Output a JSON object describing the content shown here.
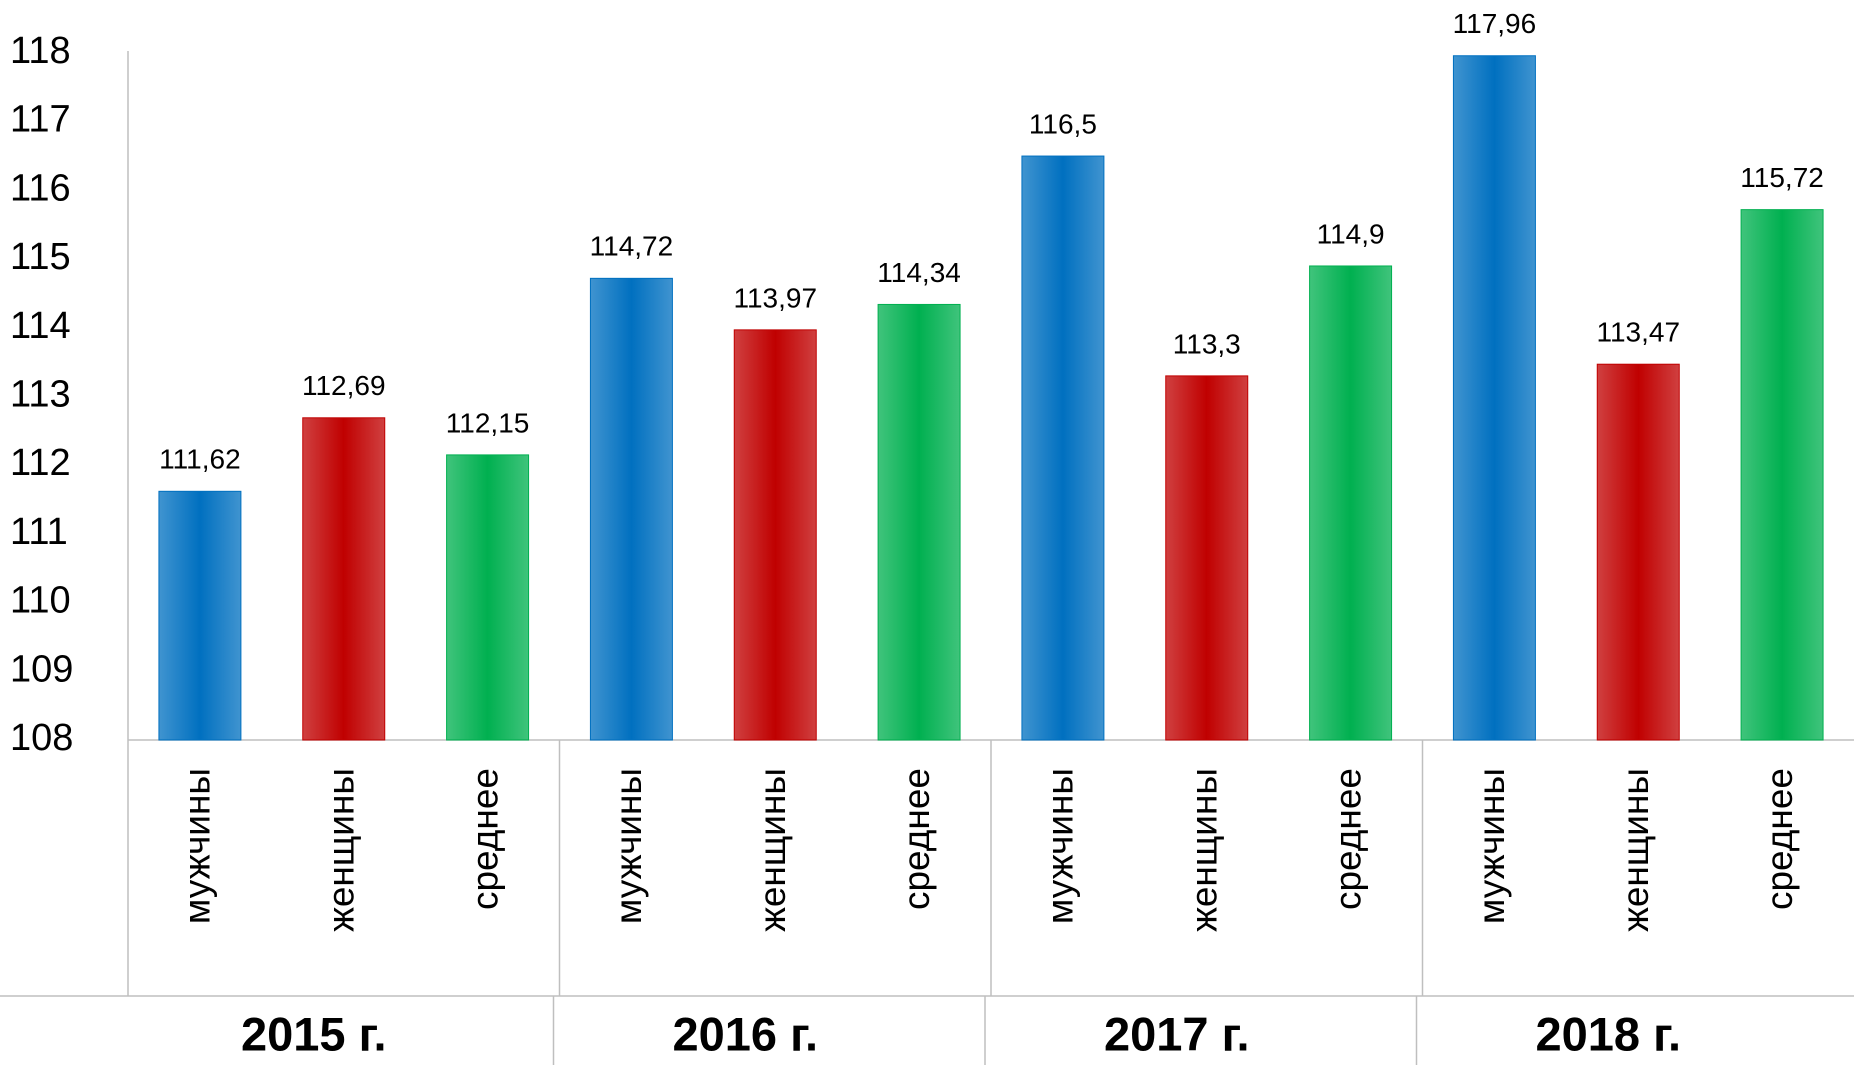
{
  "chart_data": {
    "type": "bar",
    "categories": [
      "2015 г.",
      "2016 г.",
      "2017 г.",
      "2018 г."
    ],
    "series": [
      {
        "name": "мужчины",
        "color": "#0070c0",
        "values": [
          111.62,
          114.72,
          116.5,
          117.96
        ],
        "value_labels": [
          "111,62",
          "114,72",
          "116,5",
          "117,96"
        ]
      },
      {
        "name": "женщины",
        "color": "#c00000",
        "values": [
          112.69,
          113.97,
          113.3,
          113.47
        ],
        "value_labels": [
          "112,69",
          "113,97",
          "113,3",
          "113,47"
        ]
      },
      {
        "name": "среднее",
        "color": "#00b050",
        "values": [
          112.15,
          114.34,
          114.9,
          115.72
        ],
        "value_labels": [
          "112,15",
          "114,34",
          "114,9",
          "115,72"
        ]
      }
    ],
    "ylim": [
      108,
      118
    ],
    "yticks": [
      108,
      109,
      110,
      111,
      112,
      113,
      114,
      115,
      116,
      117,
      118
    ],
    "grid": false
  }
}
